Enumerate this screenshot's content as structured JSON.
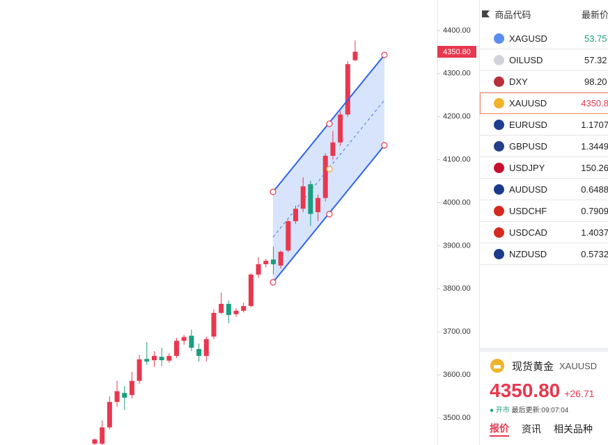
{
  "chart_data": {
    "type": "candlestick",
    "ylim": [
      3437,
      4471
    ],
    "yticks": [
      {
        "value": 3500,
        "label": "3500.00"
      },
      {
        "value": 3600,
        "label": "3600.00"
      },
      {
        "value": 3700,
        "label": "3700.00"
      },
      {
        "value": 3800,
        "label": "3800.00"
      },
      {
        "value": 3900,
        "label": "3900.00"
      },
      {
        "value": 4000,
        "label": "4000.00"
      },
      {
        "value": 4100,
        "label": "4100.00"
      },
      {
        "value": 4200,
        "label": "4200.00"
      },
      {
        "value": 4300,
        "label": "4300.00"
      },
      {
        "value": 4400,
        "label": "4400.00"
      }
    ],
    "price_tag": "4350.80",
    "up_color": "#e8384f",
    "down_color": "#1a9e7e",
    "candles": [
      {
        "open": 3440,
        "high": 3452,
        "low": 3437,
        "close": 3450
      },
      {
        "open": 3440,
        "high": 3494,
        "low": 3437,
        "close": 3478
      },
      {
        "open": 3478,
        "high": 3550,
        "low": 3473,
        "close": 3537
      },
      {
        "open": 3537,
        "high": 3586,
        "low": 3526,
        "close": 3562
      },
      {
        "open": 3558,
        "high": 3574,
        "low": 3518,
        "close": 3547
      },
      {
        "open": 3553,
        "high": 3607,
        "low": 3545,
        "close": 3586
      },
      {
        "open": 3586,
        "high": 3647,
        "low": 3579,
        "close": 3636
      },
      {
        "open": 3637,
        "high": 3676,
        "low": 3623,
        "close": 3631
      },
      {
        "open": 3634,
        "high": 3655,
        "low": 3618,
        "close": 3644
      },
      {
        "open": 3642,
        "high": 3663,
        "low": 3620,
        "close": 3634
      },
      {
        "open": 3633,
        "high": 3650,
        "low": 3628,
        "close": 3644
      },
      {
        "open": 3644,
        "high": 3686,
        "low": 3639,
        "close": 3679
      },
      {
        "open": 3679,
        "high": 3693,
        "low": 3670,
        "close": 3688
      },
      {
        "open": 3691,
        "high": 3705,
        "low": 3655,
        "close": 3663
      },
      {
        "open": 3660,
        "high": 3673,
        "low": 3631,
        "close": 3644
      },
      {
        "open": 3644,
        "high": 3689,
        "low": 3631,
        "close": 3683
      },
      {
        "open": 3689,
        "high": 3752,
        "low": 3683,
        "close": 3744
      },
      {
        "open": 3744,
        "high": 3791,
        "low": 3741,
        "close": 3765
      },
      {
        "open": 3765,
        "high": 3773,
        "low": 3720,
        "close": 3739
      },
      {
        "open": 3741,
        "high": 3755,
        "low": 3735,
        "close": 3749
      },
      {
        "open": 3749,
        "high": 3768,
        "low": 3745,
        "close": 3760
      },
      {
        "open": 3760,
        "high": 3836,
        "low": 3757,
        "close": 3833
      },
      {
        "open": 3833,
        "high": 3873,
        "low": 3825,
        "close": 3857
      },
      {
        "open": 3857,
        "high": 3870,
        "low": 3850,
        "close": 3865
      },
      {
        "open": 3868,
        "high": 3898,
        "low": 3833,
        "close": 3857
      },
      {
        "open": 3854,
        "high": 3889,
        "low": 3847,
        "close": 3886
      },
      {
        "open": 3889,
        "high": 3960,
        "low": 3885,
        "close": 3957
      },
      {
        "open": 3957,
        "high": 3993,
        "low": 3951,
        "close": 3986
      },
      {
        "open": 3986,
        "high": 4059,
        "low": 3978,
        "close": 4038
      },
      {
        "open": 4043,
        "high": 4051,
        "low": 3946,
        "close": 3974
      },
      {
        "open": 3978,
        "high": 4019,
        "low": 3957,
        "close": 4011
      },
      {
        "open": 4011,
        "high": 4115,
        "low": 4003,
        "close": 4109
      },
      {
        "open": 4109,
        "high": 4167,
        "low": 4100,
        "close": 4140
      },
      {
        "open": 4140,
        "high": 4213,
        "low": 4132,
        "close": 4205
      },
      {
        "open": 4205,
        "high": 4329,
        "low": 4200,
        "close": 4322
      },
      {
        "open": 4331,
        "high": 4377,
        "low": 4329,
        "close": 4350.8
      }
    ]
  },
  "watchlist": {
    "header": {
      "symbol": "商品代码",
      "price": "最新价"
    },
    "rows": [
      {
        "symbol": "XAGUSD",
        "price": "53.75",
        "trend": "down"
      },
      {
        "symbol": "OILUSD",
        "price": "57.32",
        "trend": "flat"
      },
      {
        "symbol": "DXY",
        "price": "98.20",
        "trend": "flat"
      },
      {
        "symbol": "XAUUSD",
        "price": "4350.8",
        "trend": "up"
      },
      {
        "symbol": "EURUSD",
        "price": "1.1707",
        "trend": "flat"
      },
      {
        "symbol": "GBPUSD",
        "price": "1.3449",
        "trend": "flat"
      },
      {
        "symbol": "USDJPY",
        "price": "150.26",
        "trend": "flat"
      },
      {
        "symbol": "AUDUSD",
        "price": "0.6488",
        "trend": "flat"
      },
      {
        "symbol": "USDCHF",
        "price": "0.7909",
        "trend": "flat"
      },
      {
        "symbol": "USDCAD",
        "price": "1.4037",
        "trend": "flat"
      },
      {
        "symbol": "NZDUSD",
        "price": "0.5732",
        "trend": "flat"
      }
    ]
  },
  "detail": {
    "name": "现货黄金",
    "symbol": "XAUUSD",
    "price": "4350.80",
    "change": "+26.71",
    "status": "● 开市",
    "updated": "最后更新:09:07:04",
    "tabs": [
      "报价",
      "资讯",
      "相关品种"
    ]
  }
}
